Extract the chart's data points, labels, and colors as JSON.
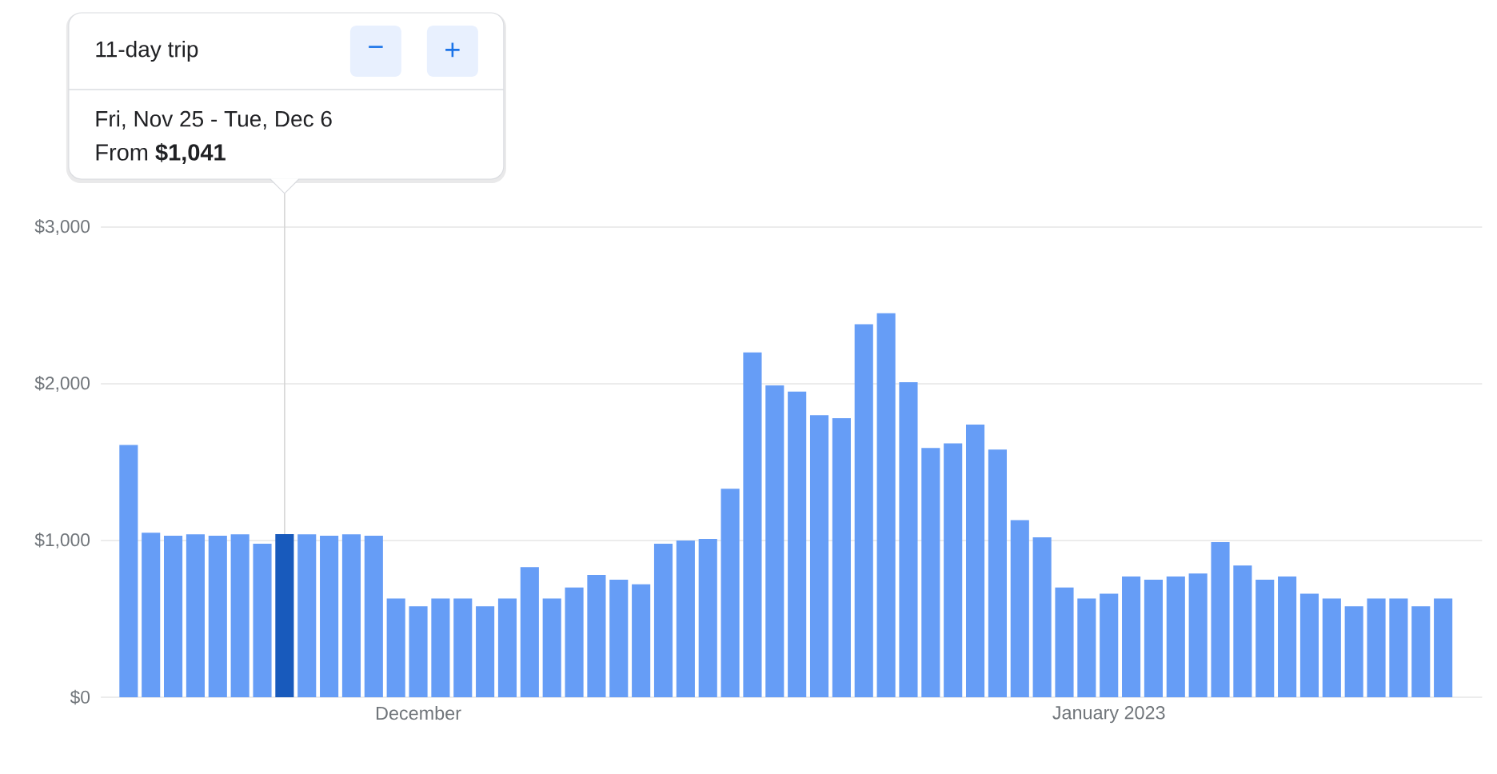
{
  "chart_data": {
    "type": "bar",
    "x": [
      "2022-11-18",
      "2022-11-19",
      "2022-11-20",
      "2022-11-21",
      "2022-11-22",
      "2022-11-23",
      "2022-11-24",
      "2022-11-25",
      "2022-11-26",
      "2022-11-27",
      "2022-11-28",
      "2022-11-29",
      "2022-11-30",
      "2022-12-01",
      "2022-12-02",
      "2022-12-03",
      "2022-12-04",
      "2022-12-05",
      "2022-12-06",
      "2022-12-07",
      "2022-12-08",
      "2022-12-09",
      "2022-12-10",
      "2022-12-11",
      "2022-12-12",
      "2022-12-13",
      "2022-12-14",
      "2022-12-15",
      "2022-12-16",
      "2022-12-17",
      "2022-12-18",
      "2022-12-19",
      "2022-12-20",
      "2022-12-21",
      "2022-12-22",
      "2022-12-23",
      "2022-12-24",
      "2022-12-25",
      "2022-12-26",
      "2022-12-27",
      "2022-12-28",
      "2022-12-29",
      "2022-12-30",
      "2022-12-31",
      "2023-01-01",
      "2023-01-02",
      "2023-01-03",
      "2023-01-04",
      "2023-01-05",
      "2023-01-06",
      "2023-01-07",
      "2023-01-08",
      "2023-01-09",
      "2023-01-10",
      "2023-01-11",
      "2023-01-12",
      "2023-01-13",
      "2023-01-14",
      "2023-01-15",
      "2023-01-16"
    ],
    "values": [
      1610,
      1050,
      1030,
      1040,
      1030,
      1040,
      980,
      1041,
      1040,
      1030,
      1040,
      1030,
      630,
      580,
      630,
      630,
      580,
      630,
      830,
      630,
      700,
      780,
      750,
      720,
      980,
      1000,
      1010,
      1330,
      2200,
      1990,
      1950,
      1800,
      1780,
      2380,
      2450,
      2010,
      1590,
      1620,
      1740,
      1580,
      1130,
      1020,
      700,
      630,
      660,
      770,
      750,
      770,
      790,
      990,
      840,
      750,
      770,
      660,
      630,
      580,
      630,
      630,
      580,
      630
    ],
    "colors": [
      "#669df6",
      "#669df6",
      "#669df6",
      "#669df6",
      "#669df6",
      "#669df6",
      "#669df6",
      "#185abc",
      "#669df6",
      "#669df6",
      "#669df6",
      "#669df6",
      "#669df6",
      "#669df6",
      "#669df6",
      "#669df6",
      "#669df6",
      "#669df6",
      "#669df6",
      "#669df6",
      "#669df6",
      "#669df6",
      "#669df6",
      "#669df6",
      "#669df6",
      "#669df6",
      "#669df6",
      "#669df6",
      "#669df6",
      "#669df6",
      "#669df6",
      "#669df6",
      "#669df6",
      "#669df6",
      "#669df6",
      "#669df6",
      "#669df6",
      "#669df6",
      "#669df6",
      "#669df6",
      "#669df6",
      "#669df6",
      "#669df6",
      "#669df6",
      "#669df6",
      "#669df6",
      "#669df6",
      "#669df6",
      "#669df6",
      "#669df6",
      "#669df6",
      "#669df6",
      "#669df6",
      "#669df6",
      "#669df6",
      "#669df6",
      "#669df6",
      "#669df6",
      "#669df6",
      "#669df6"
    ],
    "xlim": [
      "2022-11-16T18:00",
      "2023-01-17T18:00"
    ],
    "xticks": [
      {
        "value": "2022-12-01",
        "label": "December"
      },
      {
        "value": "2023-01-01",
        "label": "January 2023"
      }
    ],
    "ylim": [
      0,
      3000
    ],
    "yticks": [
      {
        "value": 0,
        "label": "$0"
      },
      {
        "value": 1000,
        "label": "$1,000"
      },
      {
        "value": 2000,
        "label": "$2,000"
      },
      {
        "value": 3000,
        "label": "$3,000"
      }
    ],
    "grid": "y",
    "ref_lines": [
      {
        "axis": "x",
        "value": "2022-11-25",
        "color": "#d5d5d5"
      }
    ],
    "annotations": [
      "11-day trip",
      "−",
      "+",
      "Fri, Nov 25 - Tue, Dec 6",
      "From **$1,041**"
    ]
  }
}
